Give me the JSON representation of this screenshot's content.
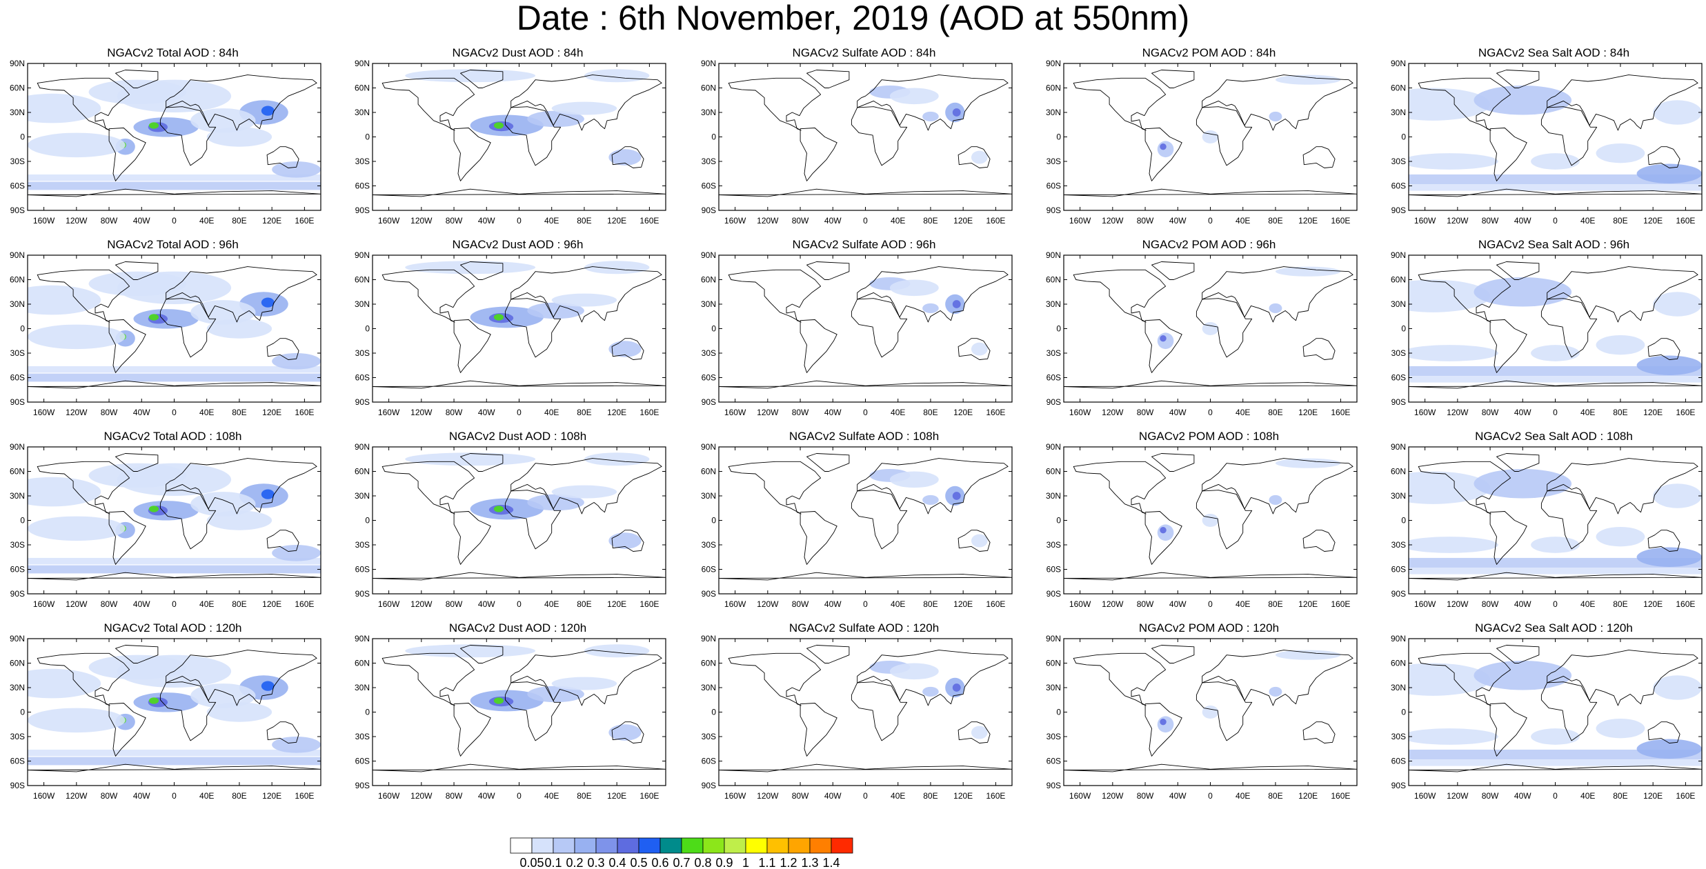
{
  "title": "Date : 6th November, 2019 (AOD at 550nm)",
  "axes": {
    "lat_labels": [
      "90N",
      "60N",
      "30N",
      "0",
      "30S",
      "60S",
      "90S"
    ],
    "lon_labels": [
      "160W",
      "120W",
      "80W",
      "40W",
      "0",
      "40E",
      "80E",
      "120E",
      "160E"
    ],
    "lat_values": [
      90,
      60,
      30,
      0,
      -30,
      -60,
      -90
    ],
    "lon_values": [
      -160,
      -120,
      -80,
      -40,
      0,
      40,
      80,
      120,
      160
    ]
  },
  "colorbar": {
    "labels": [
      "0.05",
      "0.1",
      "0.2",
      "0.3",
      "0.4",
      "0.5",
      "0.6",
      "0.7",
      "0.8",
      "0.9",
      "1",
      "1.1",
      "1.2",
      "1.3",
      "1.4"
    ],
    "colors": [
      "#ffffff",
      "#d6e2fb",
      "#b7c9f6",
      "#98b1f1",
      "#7e93ea",
      "#5e6ce0",
      "#1f5ff2",
      "#008b8b",
      "#4ddc18",
      "#8ce61a",
      "#bfee4a",
      "#ffff00",
      "#ffc000",
      "#ffa500",
      "#ff7f00",
      "#ff2a00"
    ]
  },
  "rows": [
    {
      "panels": [
        {
          "title": "NGACv2 Total AOD : 84h",
          "field": "total"
        },
        {
          "title": "NGACv2 Dust AOD : 84h",
          "field": "dust"
        },
        {
          "title": "NGACv2 Sulfate AOD : 84h",
          "field": "sulfate"
        },
        {
          "title": "NGACv2 POM AOD : 84h",
          "field": "pom"
        },
        {
          "title": "NGACv2 Sea Salt AOD : 84h",
          "field": "seasalt"
        }
      ]
    },
    {
      "panels": [
        {
          "title": "NGACv2 Total AOD : 96h",
          "field": "total"
        },
        {
          "title": "NGACv2 Dust AOD : 96h",
          "field": "dust"
        },
        {
          "title": "NGACv2 Sulfate AOD : 96h",
          "field": "sulfate"
        },
        {
          "title": "NGACv2 POM AOD : 96h",
          "field": "pom"
        },
        {
          "title": "NGACv2 Sea Salt AOD : 96h",
          "field": "seasalt"
        }
      ]
    },
    {
      "panels": [
        {
          "title": "NGACv2 Total AOD : 108h",
          "field": "total"
        },
        {
          "title": "NGACv2 Dust AOD : 108h",
          "field": "dust"
        },
        {
          "title": "NGACv2 Sulfate AOD : 108h",
          "field": "sulfate"
        },
        {
          "title": "NGACv2 POM AOD : 108h",
          "field": "pom"
        },
        {
          "title": "NGACv2 Sea Salt AOD : 108h",
          "field": "seasalt"
        }
      ]
    },
    {
      "panels": [
        {
          "title": "NGACv2 Total AOD : 120h",
          "field": "total"
        },
        {
          "title": "NGACv2 Dust AOD : 120h",
          "field": "dust"
        },
        {
          "title": "NGACv2 Sulfate AOD : 120h",
          "field": "sulfate"
        },
        {
          "title": "NGACv2 POM AOD : 120h",
          "field": "pom"
        },
        {
          "title": "NGACv2 Sea Salt  AOD : 120h",
          "field": "seasalt"
        }
      ]
    }
  ]
}
